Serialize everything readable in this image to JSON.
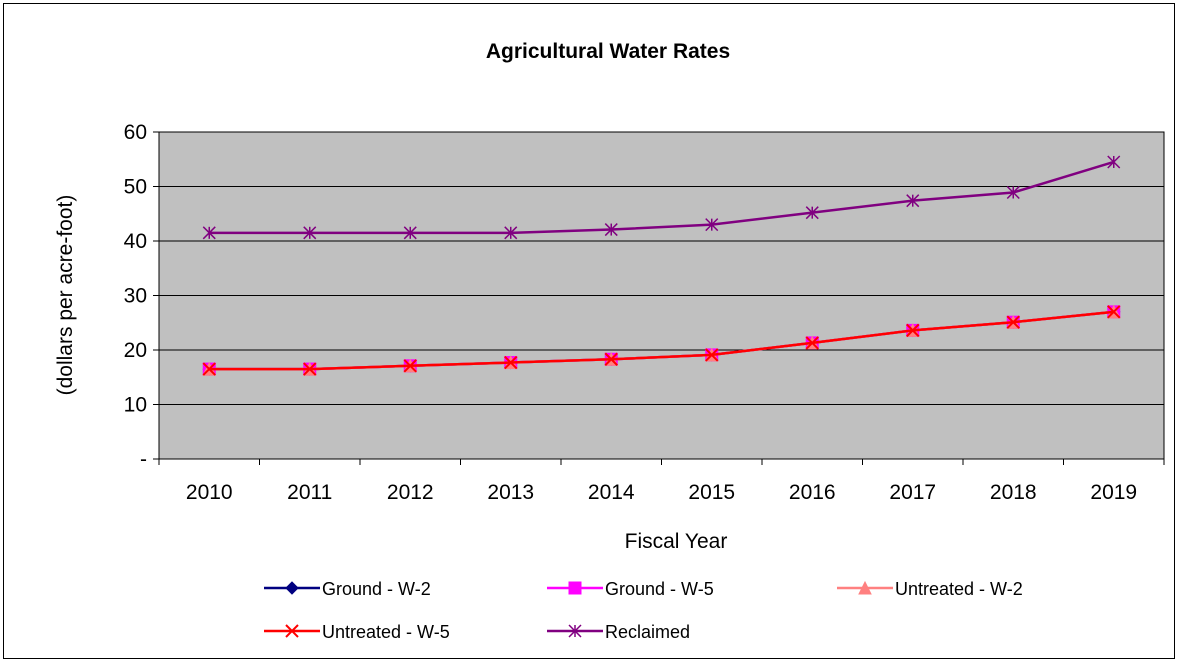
{
  "chart_data": {
    "type": "line",
    "title": "Agricultural Water Rates",
    "xlabel": "Fiscal Year",
    "ylabel": "(dollars per acre-foot)",
    "categories": [
      "2010",
      "2011",
      "2012",
      "2013",
      "2014",
      "2015",
      "2016",
      "2017",
      "2018",
      "2019"
    ],
    "ylim": [
      0,
      60
    ],
    "yticks": [
      0,
      10,
      20,
      30,
      40,
      50,
      60
    ],
    "ytick_labels": [
      "-",
      "10",
      "20",
      "30",
      "40",
      "50",
      "60"
    ],
    "grid": true,
    "plot_background": "#c0c0c0",
    "legend_position": "bottom",
    "series": [
      {
        "name": "Ground - W-2",
        "color": "#000080",
        "marker": "diamond",
        "values": [
          16.5,
          16.5,
          17.1,
          17.7,
          18.3,
          19.1,
          21.3,
          23.6,
          25.1,
          27.0
        ]
      },
      {
        "name": "Ground - W-5",
        "color": "#ff00ff",
        "marker": "square",
        "values": [
          16.5,
          16.5,
          17.1,
          17.7,
          18.3,
          19.1,
          21.3,
          23.6,
          25.1,
          27.0
        ]
      },
      {
        "name": "Untreated - W-2",
        "color": "#ff8080",
        "marker": "triangle",
        "values": [
          16.5,
          16.5,
          17.1,
          17.7,
          18.3,
          19.1,
          21.3,
          23.6,
          25.1,
          27.0
        ]
      },
      {
        "name": "Untreated - W-5",
        "color": "#ff0000",
        "marker": "x",
        "values": [
          16.5,
          16.5,
          17.1,
          17.7,
          18.3,
          19.1,
          21.3,
          23.6,
          25.1,
          27.0
        ]
      },
      {
        "name": "Reclaimed",
        "color": "#800080",
        "marker": "star",
        "values": [
          41.5,
          41.5,
          41.5,
          41.5,
          42.1,
          43.0,
          45.2,
          47.4,
          48.9,
          54.5
        ]
      }
    ]
  }
}
